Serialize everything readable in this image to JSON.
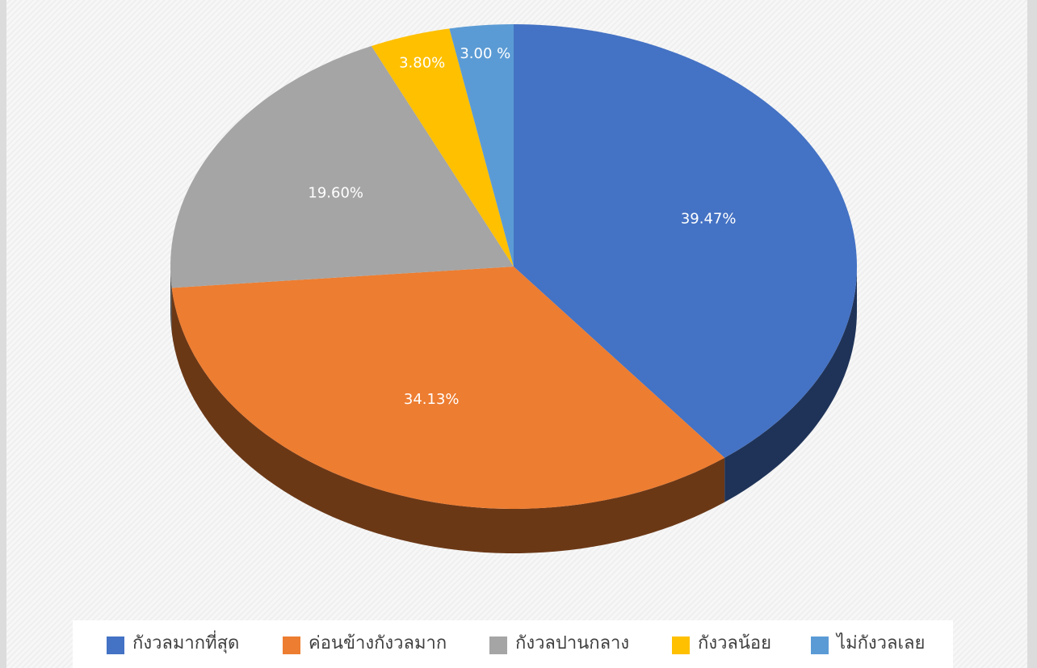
{
  "chart_data": {
    "type": "pie3d",
    "categories": [
      "กังวลมากที่สุด",
      "ค่อนข้างกังวลมาก",
      "กังวลปานกลาง",
      "กังวลน้อย",
      "ไม่กังวลเลย"
    ],
    "values": [
      39.47,
      34.13,
      19.6,
      3.8,
      3.0
    ],
    "value_labels": [
      "39.47%",
      "34.13%",
      "19.60%",
      "3.80%",
      "3.00 %"
    ],
    "colors": [
      "#4472c4",
      "#ed7d31",
      "#a5a5a5",
      "#ffc000",
      "#5b9bd5"
    ],
    "legend": "bottom"
  }
}
